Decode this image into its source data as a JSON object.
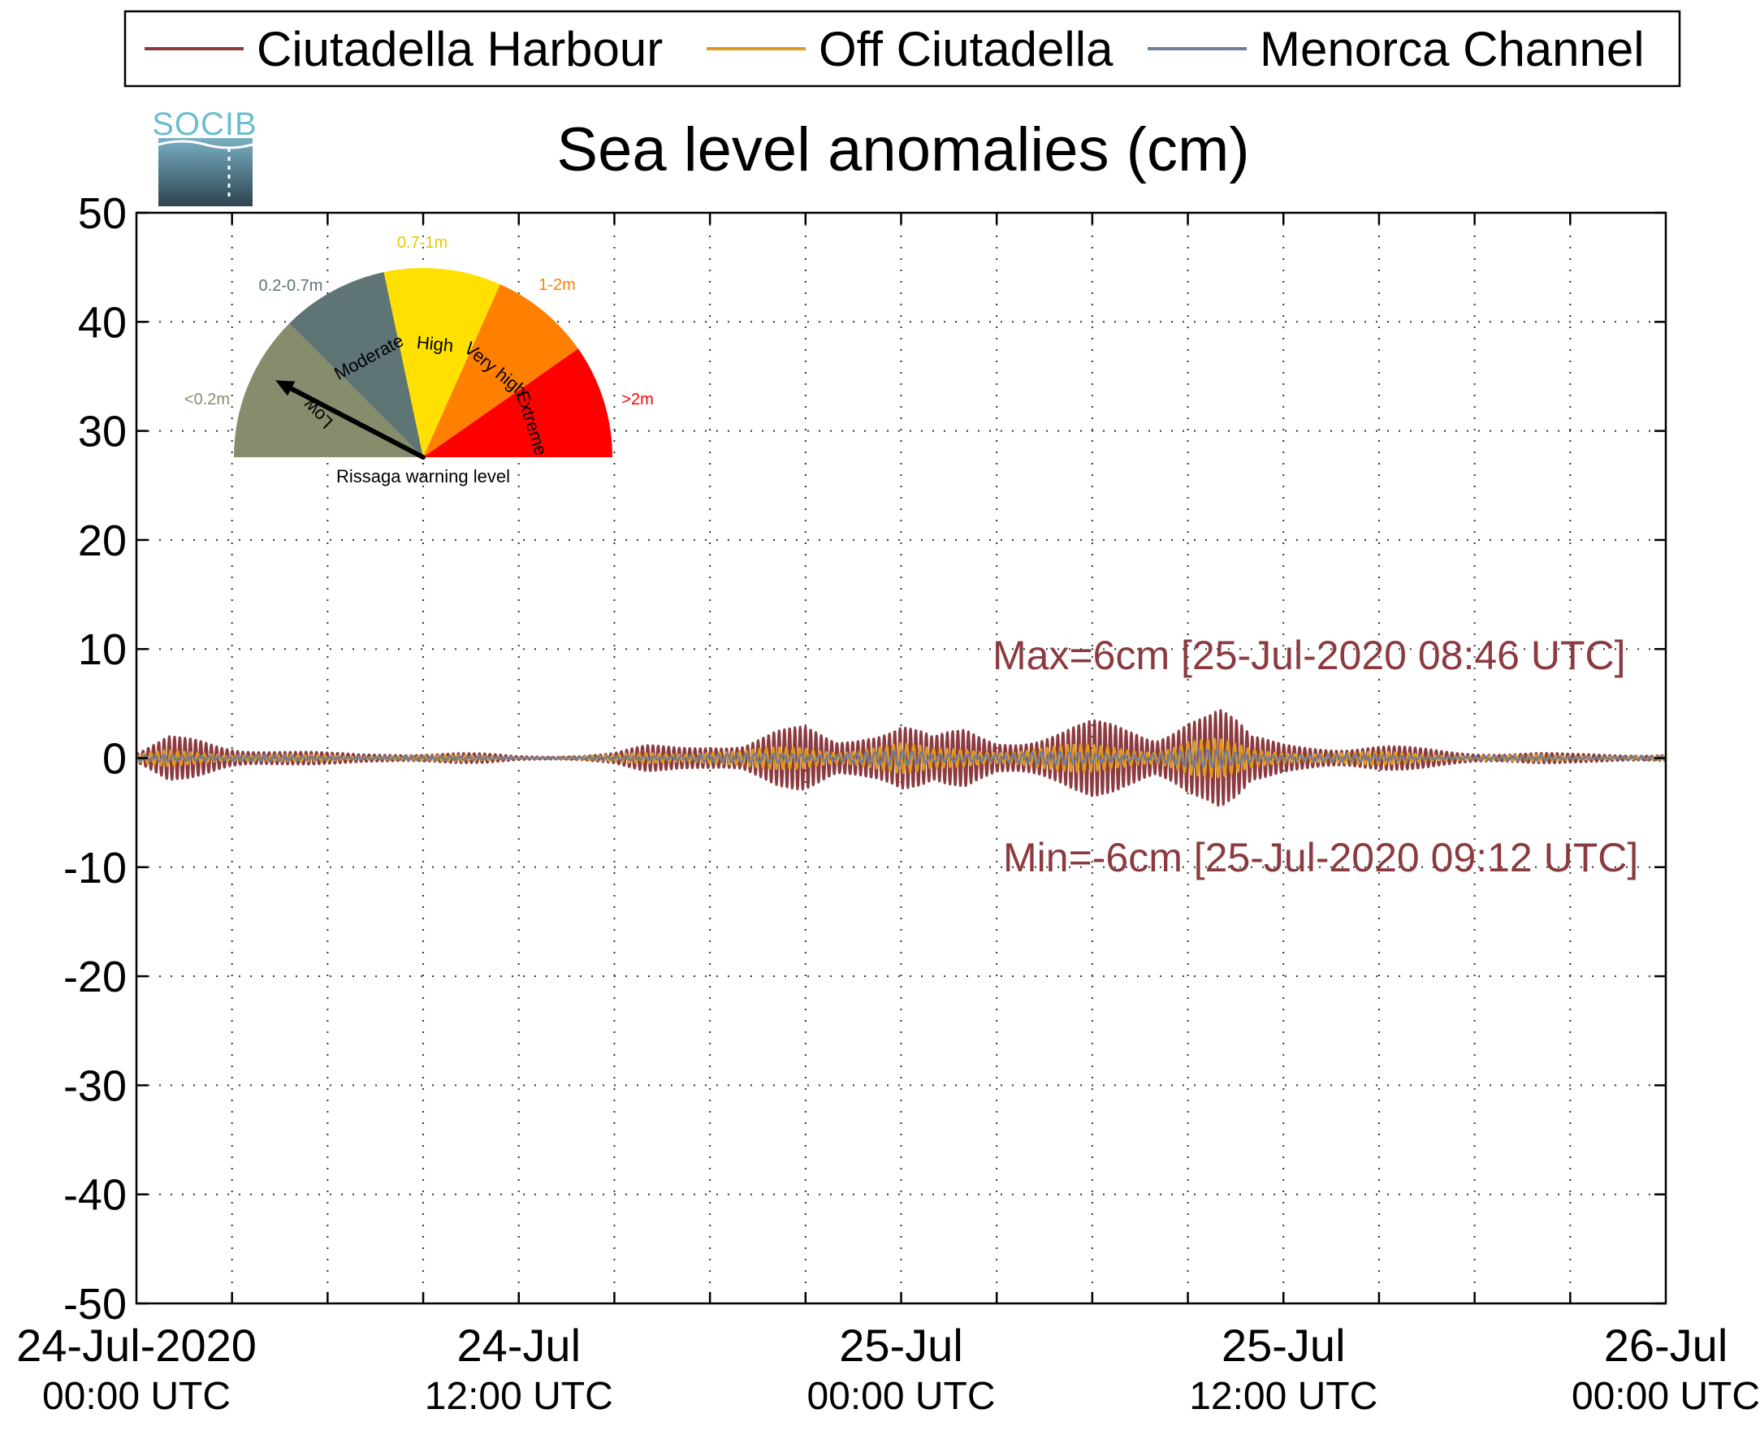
{
  "logo": {
    "text": "SOCIB"
  },
  "legend": {
    "items": [
      {
        "label": "Ciutadella Harbour",
        "color": "#8b3a3f"
      },
      {
        "label": "Off Ciutadella",
        "color": "#e09a1e"
      },
      {
        "label": "Menorca Channel",
        "color": "#6f7e9b"
      }
    ]
  },
  "chart_data": {
    "type": "line",
    "title": "Sea level anomalies (cm)",
    "xlabel": "",
    "ylabel": "",
    "ylim": [
      -50,
      50
    ],
    "yticks": [
      -50,
      -40,
      -30,
      -20,
      -10,
      0,
      10,
      20,
      30,
      40,
      50
    ],
    "xlim": [
      "2020-07-24T00:00:00Z",
      "2020-07-26T00:00:00Z"
    ],
    "xticks_labeled": [
      {
        "x": "2020-07-24T00:00:00Z",
        "line1": "24-Jul-2020",
        "line2": "00:00 UTC"
      },
      {
        "x": "2020-07-24T12:00:00Z",
        "line1": "24-Jul",
        "line2": "12:00 UTC"
      },
      {
        "x": "2020-07-25T00:00:00Z",
        "line1": "25-Jul",
        "line2": "00:00 UTC"
      },
      {
        "x": "2020-07-25T12:00:00Z",
        "line1": "25-Jul",
        "line2": "12:00 UTC"
      },
      {
        "x": "2020-07-26T00:00:00Z",
        "line1": "26-Jul",
        "line2": "00:00 UTC"
      }
    ],
    "grid": true,
    "legend_position": "top",
    "series": [
      {
        "name": "Ciutadella Harbour",
        "color": "#8b3a3f",
        "x_hours": [
          0,
          1,
          2,
          3,
          4,
          5,
          6,
          7,
          8,
          9,
          10,
          11,
          12,
          13,
          14,
          15,
          16,
          17,
          18,
          19,
          20,
          21,
          22,
          23,
          24,
          25,
          26,
          27,
          28,
          29,
          30,
          31,
          32,
          33,
          34,
          35,
          36,
          37,
          38,
          39,
          40,
          41,
          42,
          43,
          44,
          45,
          46,
          47,
          48
        ],
        "amplitude_cm": [
          0.5,
          2.0,
          1.8,
          1.2,
          1.0,
          0.7,
          0.5,
          0.4,
          0.5,
          0.5,
          0.5,
          0.4,
          0.2,
          0.2,
          0.3,
          0.5,
          1.2,
          1.3,
          1.8,
          1.5,
          2.5,
          3.0,
          2.0,
          3.5,
          4.0,
          2.0,
          2.8,
          2.0,
          2.5,
          3.0,
          3.5,
          3.0,
          2.5,
          6.0,
          5.5,
          2.0,
          1.5,
          1.5,
          1.2,
          1.2,
          1.0,
          0.8,
          0.6,
          0.5,
          0.5,
          0.4,
          0.4,
          0.4,
          0.4
        ]
      },
      {
        "name": "Off Ciutadella",
        "color": "#e09a1e",
        "x_hours": [
          0,
          1,
          2,
          3,
          4,
          5,
          6,
          7,
          8,
          9,
          10,
          11,
          12,
          13,
          14,
          15,
          16,
          17,
          18,
          19,
          20,
          21,
          22,
          23,
          24,
          25,
          26,
          27,
          28,
          29,
          30,
          31,
          32,
          33,
          34,
          35,
          36,
          37,
          38,
          39,
          40,
          41,
          42,
          43,
          44,
          45,
          46,
          47,
          48
        ],
        "amplitude_cm": [
          0.3,
          0.8,
          0.7,
          0.5,
          0.4,
          0.3,
          0.3,
          0.2,
          0.3,
          0.3,
          0.3,
          0.2,
          0.1,
          0.1,
          0.2,
          0.3,
          0.6,
          0.6,
          0.8,
          0.7,
          1.0,
          1.2,
          0.9,
          1.3,
          1.5,
          0.9,
          1.1,
          0.9,
          1.0,
          1.2,
          1.3,
          1.2,
          1.0,
          2.0,
          1.8,
          0.9,
          0.7,
          0.7,
          0.6,
          0.6,
          0.5,
          0.4,
          0.3,
          0.3,
          0.3,
          0.2,
          0.2,
          0.2,
          0.2
        ]
      },
      {
        "name": "Menorca Channel",
        "color": "#6f7e9b",
        "x_hours": [
          0,
          1,
          2,
          3,
          4,
          5,
          6,
          7,
          8,
          9,
          10,
          11,
          12,
          13,
          14,
          15,
          16,
          17,
          18,
          19,
          20,
          21,
          22,
          23,
          24,
          25,
          26,
          27,
          28,
          29,
          30,
          31,
          32,
          33,
          34,
          35,
          36,
          37,
          38,
          39,
          40,
          41,
          42,
          43,
          44,
          45,
          46,
          47,
          48
        ],
        "amplitude_cm": [
          0.2,
          0.4,
          0.4,
          0.3,
          0.3,
          0.2,
          0.2,
          0.2,
          0.2,
          0.2,
          0.2,
          0.2,
          0.1,
          0.1,
          0.1,
          0.2,
          0.3,
          0.3,
          0.4,
          0.4,
          0.5,
          0.6,
          0.5,
          0.6,
          0.7,
          0.5,
          0.6,
          0.5,
          0.5,
          0.6,
          0.6,
          0.6,
          0.5,
          0.8,
          0.8,
          0.5,
          0.4,
          0.4,
          0.3,
          0.3,
          0.3,
          0.2,
          0.2,
          0.2,
          0.2,
          0.2,
          0.2,
          0.2,
          0.2
        ]
      }
    ],
    "annotations": [
      {
        "text": "Max=6cm [25-Jul-2020 08:46 UTC]",
        "color": "#8b3a3f"
      },
      {
        "text": "Min=-6cm [25-Jul-2020 09:12 UTC]",
        "color": "#8b3a3f"
      }
    ]
  },
  "warning_gauge": {
    "title": "Rissaga warning level",
    "pointer_level": "Low",
    "sectors": [
      {
        "name": "Low",
        "range": "<0.2m",
        "color": "#878c6c",
        "label_color": "#878c6c"
      },
      {
        "name": "Moderate",
        "range": "0.2-0.7m",
        "color": "#5e7475",
        "label_color": "#5e7475"
      },
      {
        "name": "High",
        "range": "0.7-1m",
        "color": "#ffe000",
        "label_color": "#e8c800"
      },
      {
        "name": "Very high",
        "range": "1-2m",
        "color": "#ff8000",
        "label_color": "#ff8000"
      },
      {
        "name": "Extreme",
        "range": ">2m",
        "color": "#ff0000",
        "label_color": "#ff0000"
      }
    ]
  }
}
